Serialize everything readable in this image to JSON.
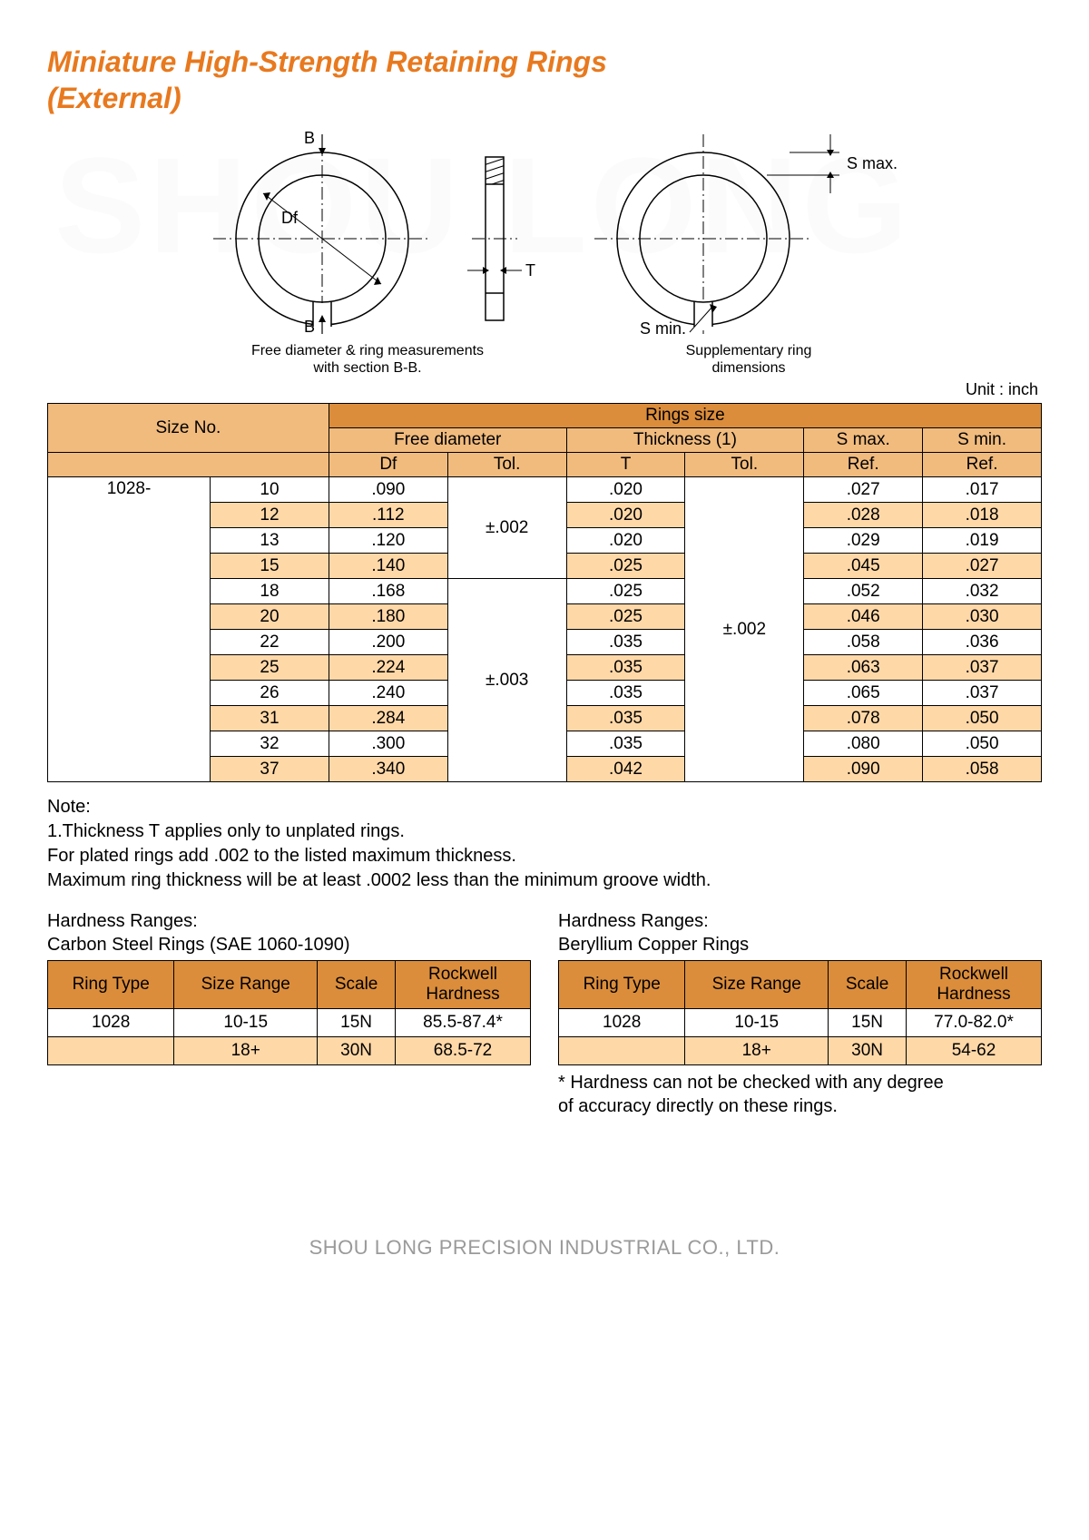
{
  "watermark": "SHOU LONG",
  "title_line1": "Miniature High-Strength Retaining Rings",
  "title_line2": "(External)",
  "diagram": {
    "left_label_B": "B",
    "left_label_Df": "Df",
    "left_caption_l1": "Free diameter & ring measurements",
    "left_caption_l2": "with section B-B.",
    "mid_label_T": "T",
    "right_label_Smax": "S max.",
    "right_label_Smin": "S min.",
    "right_caption_l1": "Supplementary ring",
    "right_caption_l2": "dimensions"
  },
  "unit_label": "Unit : inch",
  "main_table": {
    "headers": {
      "size_no": "Size No.",
      "rings_size": "Rings size",
      "free_diameter": "Free diameter",
      "thickness": "Thickness (1)",
      "s_max": "S max.",
      "s_min": "S min.",
      "df": "Df",
      "tol": "Tol.",
      "t": "T",
      "ref": "Ref."
    },
    "size_prefix": "1028-",
    "tol1": "±.002",
    "tol2": "±.003",
    "tol_thick": "±.002",
    "rows": [
      {
        "sz": "10",
        "df": ".090",
        "t": ".020",
        "smax": ".027",
        "smin": ".017",
        "alt": false
      },
      {
        "sz": "12",
        "df": ".112",
        "t": ".020",
        "smax": ".028",
        "smin": ".018",
        "alt": true
      },
      {
        "sz": "13",
        "df": ".120",
        "t": ".020",
        "smax": ".029",
        "smin": ".019",
        "alt": false
      },
      {
        "sz": "15",
        "df": ".140",
        "t": ".025",
        "smax": ".045",
        "smin": ".027",
        "alt": true
      },
      {
        "sz": "18",
        "df": ".168",
        "t": ".025",
        "smax": ".052",
        "smin": ".032",
        "alt": false
      },
      {
        "sz": "20",
        "df": ".180",
        "t": ".025",
        "smax": ".046",
        "smin": ".030",
        "alt": true
      },
      {
        "sz": "22",
        "df": ".200",
        "t": ".035",
        "smax": ".058",
        "smin": ".036",
        "alt": false
      },
      {
        "sz": "25",
        "df": ".224",
        "t": ".035",
        "smax": ".063",
        "smin": ".037",
        "alt": true
      },
      {
        "sz": "26",
        "df": ".240",
        "t": ".035",
        "smax": ".065",
        "smin": ".037",
        "alt": false
      },
      {
        "sz": "31",
        "df": ".284",
        "t": ".035",
        "smax": ".078",
        "smin": ".050",
        "alt": true
      },
      {
        "sz": "32",
        "df": ".300",
        "t": ".035",
        "smax": ".080",
        "smin": ".050",
        "alt": false
      },
      {
        "sz": "37",
        "df": ".340",
        "t": ".042",
        "smax": ".090",
        "smin": ".058",
        "alt": true
      }
    ]
  },
  "note": {
    "heading": "Note:",
    "l1": "1.Thickness T applies only to unplated rings.",
    "l2": "For plated rings add .002 to the listed maximum thickness.",
    "l3": "Maximum ring thickness will be at least .0002 less than the minimum groove width."
  },
  "hardness": {
    "title_prefix": "Hardness Ranges:",
    "carbon_title": "Carbon Steel Rings (SAE 1060-1090)",
    "beryllium_title": "Beryllium Copper Rings",
    "cols": {
      "ring_type": "Ring Type",
      "size_range": "Size Range",
      "scale": "Scale",
      "rockwell": "Rockwell Hardness"
    },
    "carbon_rows": [
      {
        "type": "1028",
        "range": "10-15",
        "scale": "15N",
        "hard": "85.5-87.4*",
        "alt": false
      },
      {
        "type": "",
        "range": "18+",
        "scale": "30N",
        "hard": "68.5-72",
        "alt": true
      }
    ],
    "beryllium_rows": [
      {
        "type": "1028",
        "range": "10-15",
        "scale": "15N",
        "hard": "77.0-82.0*",
        "alt": false
      },
      {
        "type": "",
        "range": "18+",
        "scale": "30N",
        "hard": "54-62",
        "alt": true
      }
    ],
    "footnote_l1": "* Hardness can not be checked with any degree",
    "footnote_l2": "of accuracy directly on these rings."
  },
  "footer": "SHOU LONG PRECISION INDUSTRIAL CO., LTD."
}
